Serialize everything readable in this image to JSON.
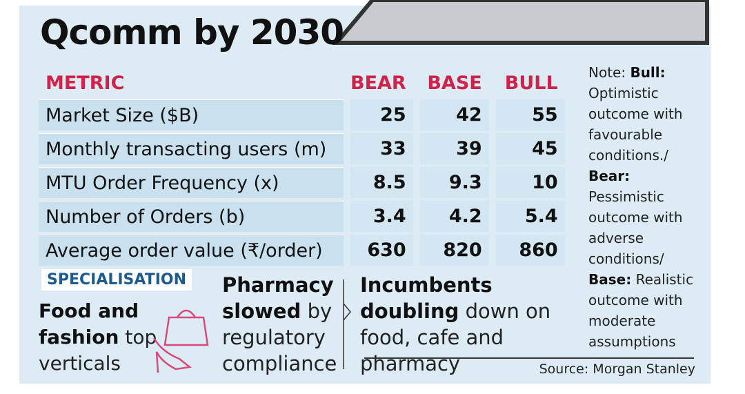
{
  "title": "Qcomm by 2030",
  "table": {
    "header": [
      "METRIC",
      "BEAR",
      "BASE",
      "BULL"
    ],
    "rows": [
      [
        "Market Size ($B)",
        25,
        42,
        55
      ],
      [
        "Monthly transacting users (m)",
        33,
        39,
        45
      ],
      [
        "MTU Order Frequency (x)",
        8.5,
        9.3,
        10
      ],
      [
        "Number of Orders (b)",
        3.4,
        4.2,
        5.4
      ],
      [
        "Average order value (₹/order)",
        630,
        820,
        860
      ]
    ]
  },
  "note": {
    "prefix": "Note:",
    "entries": [
      {
        "term": "Bull:",
        "text": "Optimistic outcome with favourable conditions./"
      },
      {
        "term": "Bear:",
        "text": "Pessimistic outcome with adverse conditions/"
      },
      {
        "term": "Base:",
        "text": "Realistic outcome with moderate assumptions"
      }
    ]
  },
  "specialisation": {
    "label": "SPECIALISATION",
    "items": [
      {
        "bold": "Food and fashion",
        "text": "top verticals"
      },
      {
        "bold": "Pharmacy slowed",
        "text": "by regulatory compliance"
      },
      {
        "bold": "Incumbents doubling",
        "text": "down on food, cafe and pharmacy"
      }
    ]
  },
  "source": "Source: Morgan Stanley"
}
